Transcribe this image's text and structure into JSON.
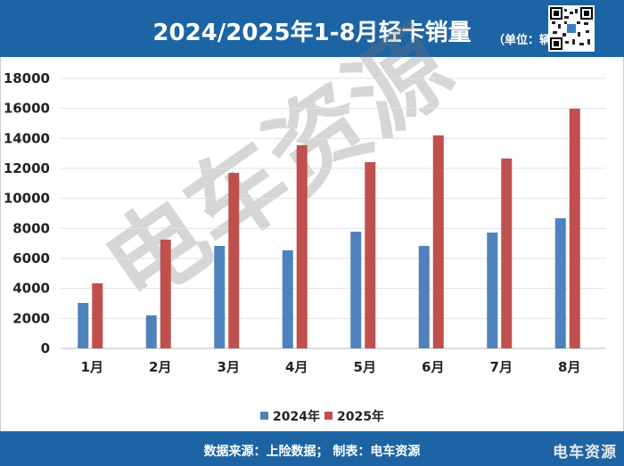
{
  "header": {
    "title": "2024/2025年1-8月轻卡销量",
    "unit": "（单位：辆）"
  },
  "footer": {
    "source": "数据来源：上险数据；  制表：电车资源",
    "brand": "电车资源"
  },
  "watermark": "电车资源",
  "colors": {
    "s2024": "#4f81bd",
    "s2025": "#c0504d",
    "band": "#1d64a4"
  },
  "chart_data": {
    "type": "bar",
    "title": "2024/2025年1-8月轻卡销量",
    "categories": [
      "1月",
      "2月",
      "3月",
      "4月",
      "5月",
      "6月",
      "7月",
      "8月"
    ],
    "series": [
      {
        "name": "2024年",
        "values": [
          3030,
          2200,
          6830,
          6540,
          7780,
          6830,
          7720,
          8670
        ]
      },
      {
        "name": "2025年",
        "values": [
          4340,
          7250,
          11700,
          13550,
          12420,
          14200,
          12660,
          15980
        ]
      }
    ],
    "ylim": [
      0,
      18000
    ],
    "yticks": [
      0,
      2000,
      4000,
      6000,
      8000,
      10000,
      12000,
      14000,
      16000,
      18000
    ],
    "grid": true,
    "legend": "bottom",
    "xlabel": "",
    "ylabel": ""
  }
}
